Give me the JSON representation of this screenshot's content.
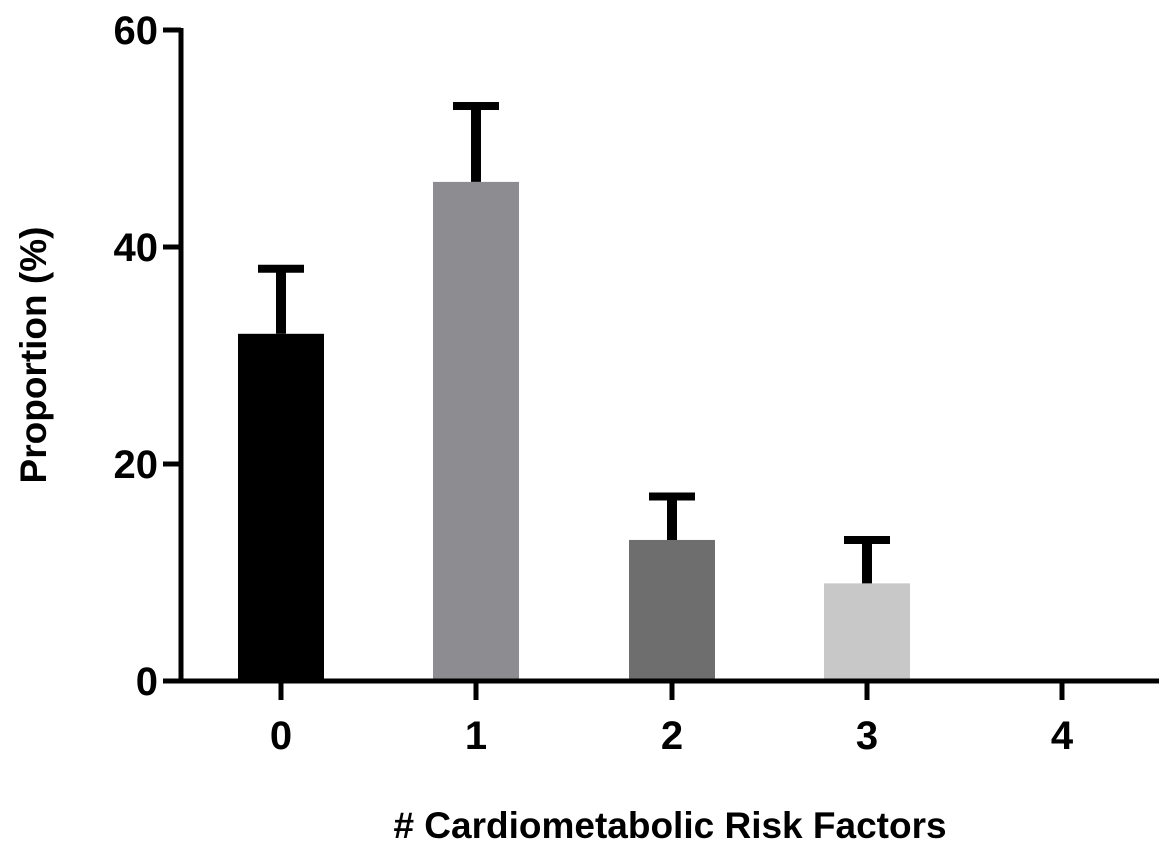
{
  "chart_data": {
    "type": "bar",
    "title": "",
    "xlabel": "# Cardiometabolic Risk Factors",
    "ylabel": "Proportion (%)",
    "categories": [
      "0",
      "1",
      "2",
      "3",
      "4"
    ],
    "values": [
      32,
      46,
      13,
      9,
      0
    ],
    "error_upper": [
      38,
      53,
      17,
      13,
      0
    ],
    "ylim": [
      0,
      60
    ],
    "yticks": [
      "0",
      "20",
      "40",
      "60"
    ],
    "bar_colors": [
      "#000000",
      "#8c8c91",
      "#6e6e6e",
      "#c8c8c8",
      "#ffffff"
    ],
    "grid": false,
    "legend": "none"
  }
}
